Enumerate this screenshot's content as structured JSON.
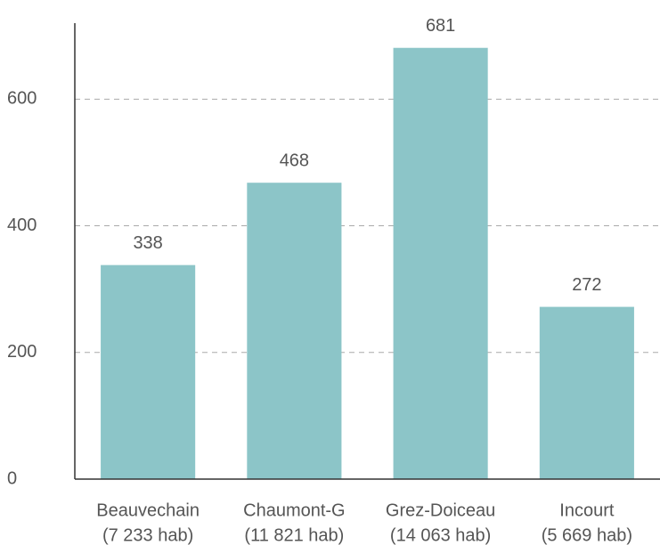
{
  "chart_data": {
    "type": "bar",
    "categories": [
      [
        "Beauvechain",
        "(7 233 hab)"
      ],
      [
        "Chaumont-G",
        "(11 821 hab)"
      ],
      [
        "Grez-Doiceau",
        "(14 063 hab)"
      ],
      [
        "Incourt",
        "(5 669 hab)"
      ]
    ],
    "values": [
      338,
      468,
      681,
      272
    ],
    "color": "#8cc5c8",
    "ylim": [
      0,
      720
    ],
    "yticks": [
      0,
      200,
      400,
      600
    ],
    "grid": true
  }
}
